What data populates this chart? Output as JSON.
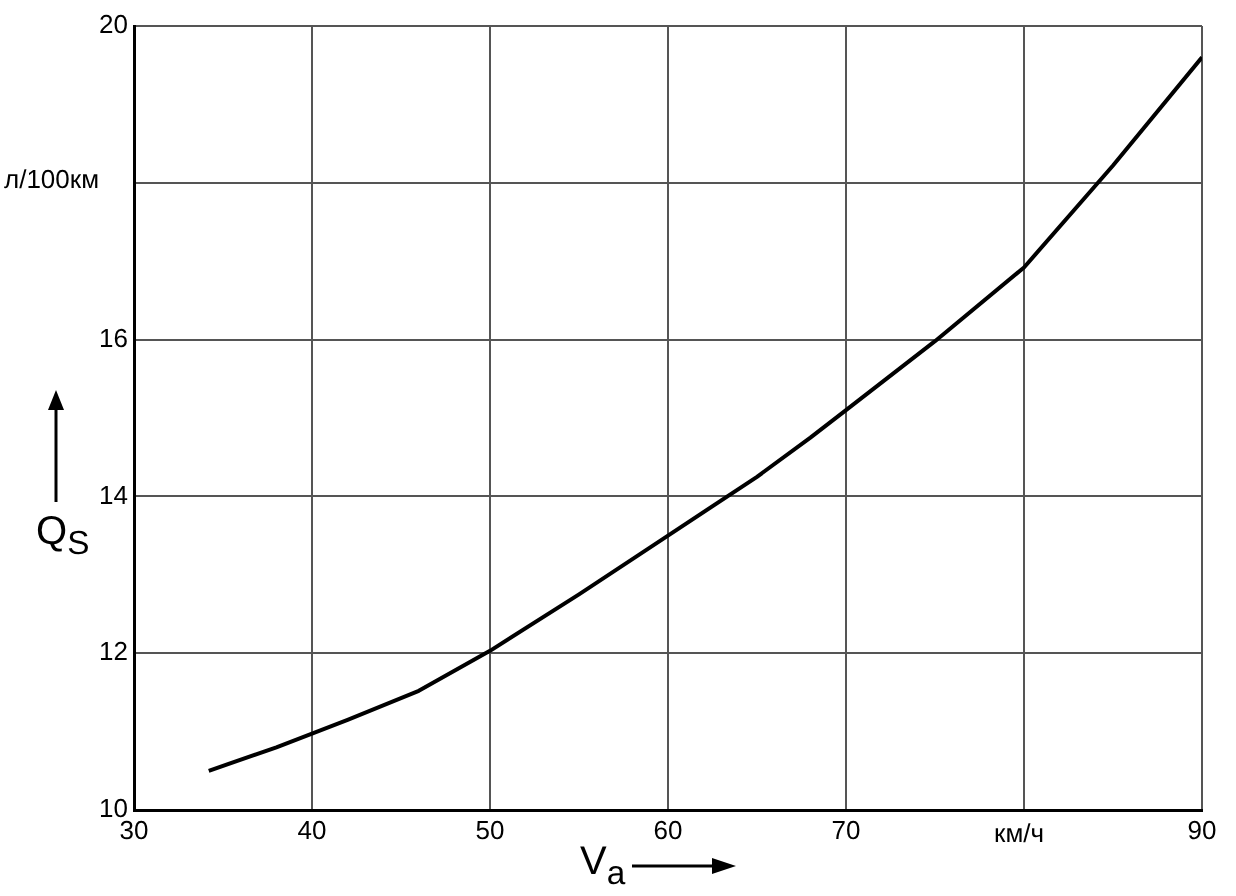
{
  "chart_data": {
    "type": "line",
    "xlabel": "V$_{a}$",
    "ylabel": "Q$_{S}$",
    "x": [
      34.2,
      38,
      42,
      46,
      50,
      55,
      60,
      65,
      68,
      70,
      75,
      80,
      85,
      90
    ],
    "series": [
      {
        "color": "#000000",
        "values": [
          10.5,
          10.8,
          11.15,
          11.52,
          12.03,
          12.75,
          13.5,
          14.25,
          14.75,
          15.1,
          15.98,
          16.92,
          18.22,
          19.6
        ]
      }
    ],
    "xlim": [
      30,
      90
    ],
    "xticks": [
      30,
      40,
      50,
      60,
      70,
      {
        "value": 80,
        "label": null
      },
      90
    ],
    "ylim": [
      10,
      20
    ],
    "yticks": [
      10,
      12,
      14,
      16,
      {
        "value": 18,
        "label": null
      },
      20
    ],
    "annotations": [
      "л/100км",
      "км/ч"
    ],
    "grid": true,
    "legend": false,
    "marker": "none",
    "line_style": "solid"
  }
}
